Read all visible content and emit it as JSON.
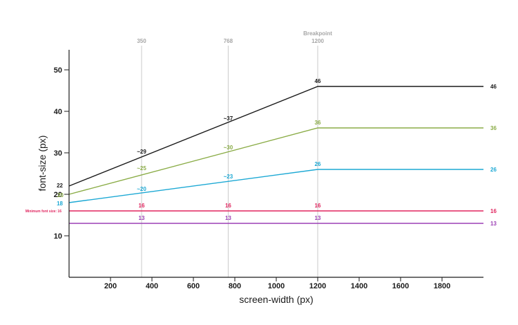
{
  "chart_data": {
    "type": "line",
    "xlabel": "screen-width (px)",
    "ylabel": "font-size (px)",
    "xlim": [
      0,
      2000
    ],
    "ylim": [
      0,
      55
    ],
    "x_ticks": [
      200,
      400,
      600,
      800,
      1000,
      1200,
      1400,
      1600,
      1800
    ],
    "y_ticks": [
      10,
      20,
      30,
      40,
      50
    ],
    "y_tick_labels": [
      "10",
      "20",
      "30",
      "40",
      "50"
    ],
    "reference_lines": [
      {
        "x": 350,
        "label": "350"
      },
      {
        "x": 768,
        "label": "768"
      },
      {
        "x": 1200,
        "label": "1200",
        "title": "Breakpoint"
      }
    ],
    "series": [
      {
        "color": "#1a1a1a",
        "x": [
          0,
          1200,
          2000
        ],
        "y": [
          22,
          46,
          46
        ],
        "labels": [
          {
            "x": 0,
            "y": 22,
            "text": "22",
            "pos": "left"
          },
          {
            "x": 350,
            "y": 29,
            "text": "~29",
            "pos": "above"
          },
          {
            "x": 768,
            "y": 37,
            "text": "~37",
            "pos": "above"
          },
          {
            "x": 1200,
            "y": 46,
            "text": "46",
            "pos": "above"
          },
          {
            "x": 2000,
            "y": 46,
            "text": "46",
            "pos": "right"
          }
        ]
      },
      {
        "color": "#8aac46",
        "x": [
          0,
          1200,
          2000
        ],
        "y": [
          20,
          36,
          36
        ],
        "labels": [
          {
            "x": 0,
            "y": 20,
            "text": "20",
            "pos": "left",
            "big": true
          },
          {
            "x": 350,
            "y": 25,
            "text": "~25",
            "pos": "above"
          },
          {
            "x": 768,
            "y": 30,
            "text": "~30",
            "pos": "above"
          },
          {
            "x": 1200,
            "y": 36,
            "text": "36",
            "pos": "above"
          },
          {
            "x": 2000,
            "y": 36,
            "text": "36",
            "pos": "right"
          }
        ]
      },
      {
        "color": "#1ba8d4",
        "x": [
          0,
          1200,
          2000
        ],
        "y": [
          18,
          26,
          26
        ],
        "labels": [
          {
            "x": 0,
            "y": 18,
            "text": "18",
            "pos": "left"
          },
          {
            "x": 350,
            "y": 20,
            "text": "~20",
            "pos": "above"
          },
          {
            "x": 768,
            "y": 23,
            "text": "~23",
            "pos": "above"
          },
          {
            "x": 1200,
            "y": 26,
            "text": "26",
            "pos": "above"
          },
          {
            "x": 2000,
            "y": 26,
            "text": "26",
            "pos": "right"
          }
        ]
      },
      {
        "color": "#e0245e",
        "x": [
          0,
          2000
        ],
        "y": [
          16,
          16
        ],
        "labels": [
          {
            "x": 0,
            "y": 16,
            "text": "Minimum font size: 16",
            "pos": "left",
            "small": true
          },
          {
            "x": 350,
            "y": 16,
            "text": "16",
            "pos": "above"
          },
          {
            "x": 768,
            "y": 16,
            "text": "16",
            "pos": "above"
          },
          {
            "x": 1200,
            "y": 16,
            "text": "16",
            "pos": "above"
          },
          {
            "x": 2000,
            "y": 16,
            "text": "16",
            "pos": "right"
          }
        ]
      },
      {
        "color": "#9b3fb5",
        "x": [
          0,
          2000
        ],
        "y": [
          13,
          13
        ],
        "labels": [
          {
            "x": 350,
            "y": 13,
            "text": "13",
            "pos": "above"
          },
          {
            "x": 768,
            "y": 13,
            "text": "13",
            "pos": "above"
          },
          {
            "x": 1200,
            "y": 13,
            "text": "13",
            "pos": "above"
          },
          {
            "x": 2000,
            "y": 13,
            "text": "13",
            "pos": "right"
          }
        ]
      }
    ]
  }
}
